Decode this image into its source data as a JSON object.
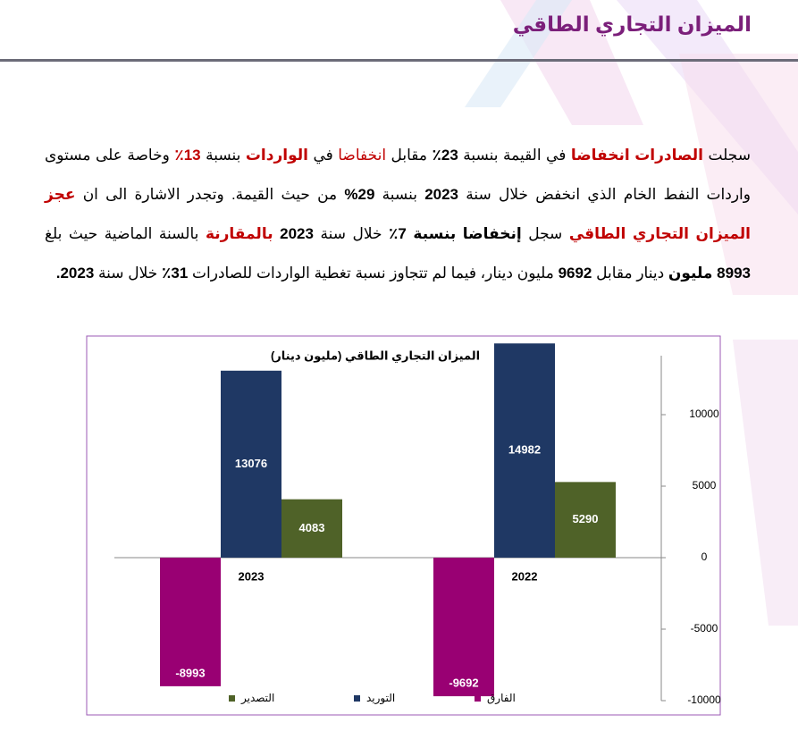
{
  "header": {
    "title": "الميزان التجاري الطاقي"
  },
  "paragraph": {
    "runs": [
      "سجلت ",
      "الصادرات انخفاضا",
      " في القيمة بنسبة ",
      "23٪",
      " مقابل ",
      "انخفاضا",
      " في ",
      "الواردات",
      " بنسبة ",
      "13٪",
      " وخاصة على مستوى واردات النفط الخام الذي انخفض خلال سنة ",
      "2023",
      " بنسبة ",
      "29%",
      " من حيث القيمة. وتجدر الاشارة الى ان ",
      "عجز الميزان التجاري الطاقي",
      " سجل ",
      "إنخفاضا بنسبة 7٪",
      " خلال سنة ",
      "2023",
      " بالمقارنة",
      " بالسنة الماضية حيث بلغ ",
      "8993 مليون",
      " دينار مقابل ",
      "9692",
      " مليون دينار، فيما لم تتجاوز نسبة تغطية الواردات للصادرات ",
      "31٪",
      " خلال سنة ",
      "2023."
    ]
  },
  "chart_data": {
    "type": "bar",
    "title": "الميزان التجاري الطاقي (مليون دينار)",
    "categories": [
      "2023",
      "2022"
    ],
    "series": [
      {
        "name": "الفارق",
        "color": "#990073",
        "values": [
          -8993,
          -9692
        ]
      },
      {
        "name": "التوريد",
        "color": "#1f3864",
        "values": [
          13076,
          14982
        ]
      },
      {
        "name": "التصدير",
        "color": "#4f6228",
        "values": [
          4083,
          5290
        ]
      }
    ],
    "ylim": [
      -10000,
      15000
    ],
    "yticks": [
      -10000,
      -5000,
      0,
      5000,
      10000
    ],
    "y_axis_side": "right",
    "legend": "bottom"
  }
}
